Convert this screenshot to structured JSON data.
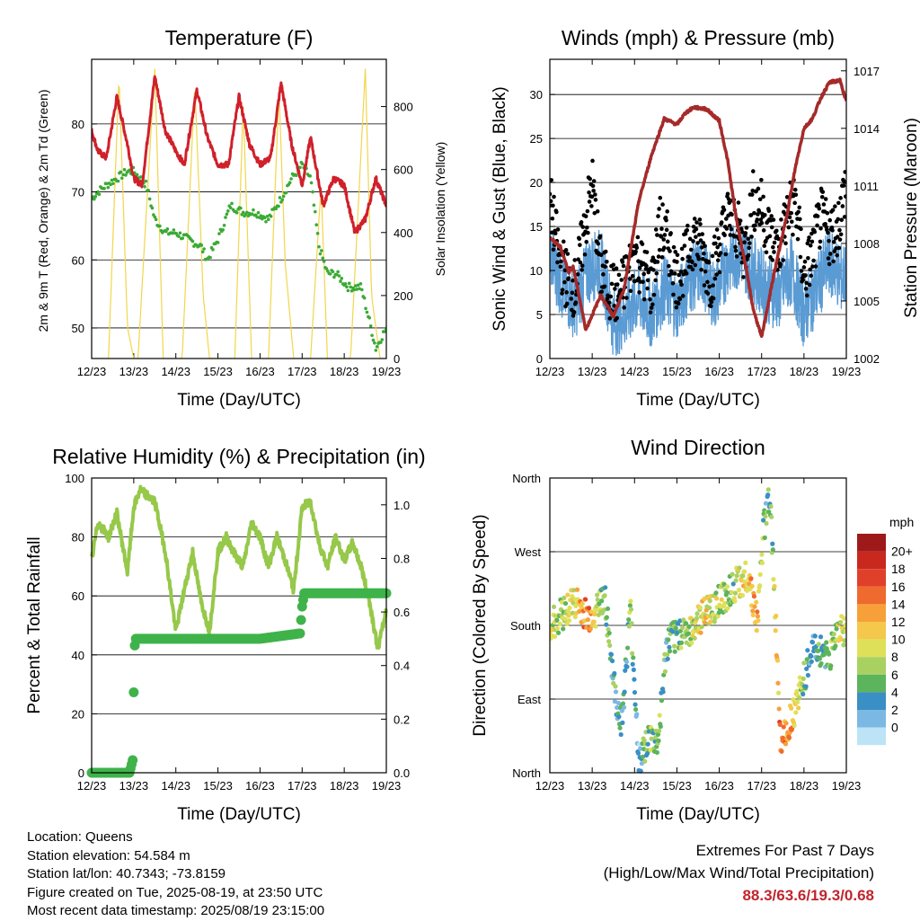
{
  "colors": {
    "temp": "#d0202a",
    "temp_9m": "#f39c1f",
    "dewpoint": "#3aaa35",
    "solar": "#f2d64b",
    "sonic": "#5a9bd4",
    "gust": "#000000",
    "pressure": "#a52a2a",
    "rh": "#96c84a",
    "precip": "#3fb34a",
    "grid": "#000000"
  },
  "chart_data": [
    {
      "type": "line",
      "title": "Temperature (F)",
      "xlabel": "Time (Day/UTC)",
      "ylabel": "2m & 9m T (Red, Orange) & 2m Td (Green)",
      "ylabel_right": "Solar Insolation (Yellow)",
      "categories": [
        "12/23",
        "13/23",
        "14/23",
        "15/23",
        "16/23",
        "17/23",
        "18/23",
        "19/23"
      ],
      "ylim": [
        45.5,
        89.5
      ],
      "yticks": [
        50,
        60,
        70,
        80
      ],
      "y2lim": [
        0,
        950
      ],
      "y2ticks": [
        0,
        200,
        400,
        600,
        800
      ],
      "grid": true,
      "series": [
        {
          "name": "2m T",
          "x": [
            0,
            0.15,
            0.35,
            0.6,
            0.85,
            1.0,
            1.2,
            1.5,
            1.75,
            2.0,
            2.2,
            2.5,
            2.75,
            3.0,
            3.25,
            3.5,
            3.75,
            4.0,
            4.25,
            4.5,
            4.75,
            5.0,
            5.2,
            5.5,
            5.75,
            6.0,
            6.25,
            6.5,
            6.75,
            7.0
          ],
          "values": [
            79,
            76,
            75,
            84,
            77,
            72,
            71,
            87,
            79,
            76,
            74,
            85,
            78,
            74,
            74,
            84,
            77,
            74,
            75,
            86,
            77,
            71,
            78,
            68,
            72,
            71,
            64,
            66,
            72,
            68
          ]
        },
        {
          "name": "2m Td",
          "x": [
            0,
            0.15,
            0.35,
            0.6,
            0.85,
            1.0,
            1.3,
            1.5,
            1.75,
            2.0,
            2.3,
            2.6,
            2.75,
            3.0,
            3.3,
            3.6,
            3.9,
            4.2,
            4.5,
            4.75,
            5.0,
            5.2,
            5.4,
            5.6,
            5.8,
            6.1,
            6.4,
            6.6,
            6.75,
            7.0
          ],
          "values": [
            69,
            70,
            71,
            72,
            73,
            73,
            71,
            66,
            64,
            64,
            63,
            62,
            60,
            63,
            68,
            67,
            67,
            66,
            69,
            72,
            74,
            72,
            62,
            58,
            58,
            56,
            56,
            51,
            47,
            50
          ]
        },
        {
          "name": "Solar Insolation",
          "axis": "right",
          "x": [
            0.0,
            0.4,
            0.65,
            0.85,
            1.0,
            1.1,
            1.4,
            1.5,
            1.7,
            2.0,
            2.15,
            2.45,
            2.65,
            2.8,
            3.0,
            3.2,
            3.4,
            3.6,
            3.8,
            4.0,
            4.2,
            4.45,
            4.6,
            4.8,
            5.0,
            5.2,
            5.45,
            5.6,
            5.8,
            6.0,
            6.15,
            6.5,
            6.65,
            6.85,
            7.0
          ],
          "values": [
            0,
            0,
            900,
            100,
            0,
            0,
            700,
            920,
            0,
            0,
            0,
            870,
            200,
            0,
            0,
            0,
            0,
            800,
            0,
            0,
            0,
            850,
            300,
            0,
            0,
            0,
            550,
            0,
            0,
            0,
            0,
            920,
            200,
            0,
            0
          ]
        }
      ]
    },
    {
      "type": "line",
      "title": "Winds (mph) & Pressure (mb)",
      "xlabel": "Time (Day/UTC)",
      "ylabel": "Sonic Wind & Gust (Blue, Black)",
      "ylabel_right": "Station Pressure (Maroon)",
      "categories": [
        "12/23",
        "13/23",
        "14/23",
        "15/23",
        "16/23",
        "17/23",
        "18/23",
        "19/23"
      ],
      "ylim": [
        0,
        34
      ],
      "yticks": [
        0,
        5,
        10,
        15,
        20,
        25,
        30
      ],
      "y2lim": [
        1002,
        1017.6
      ],
      "y2ticks": [
        1002,
        1005,
        1008,
        1011,
        1014,
        1017
      ],
      "grid": true,
      "series": [
        {
          "name": "Sonic Wind",
          "x": [
            0,
            0.3,
            0.6,
            0.9,
            1.2,
            1.5,
            1.8,
            2.1,
            2.4,
            2.7,
            3.0,
            3.3,
            3.6,
            3.9,
            4.2,
            4.5,
            4.8,
            5.1,
            5.4,
            5.7,
            6.0,
            6.3,
            6.6,
            6.9,
            7.0
          ],
          "values": [
            12,
            8,
            6,
            10,
            11,
            4,
            5,
            7,
            5,
            8,
            6,
            9,
            10,
            7,
            11,
            12,
            10,
            8,
            7,
            10,
            5,
            8,
            11,
            9,
            10
          ]
        },
        {
          "name": "Gust",
          "x": [
            0,
            0.2,
            0.4,
            0.6,
            0.8,
            1.0,
            1.2,
            1.4,
            1.6,
            1.8,
            2.0,
            2.2,
            2.4,
            2.6,
            2.8,
            3.0,
            3.2,
            3.4,
            3.6,
            3.8,
            4.0,
            4.2,
            4.4,
            4.6,
            4.8,
            5.0,
            5.2,
            5.4,
            5.6,
            5.8,
            6.0,
            6.2,
            6.4,
            6.6,
            6.8,
            7.0
          ],
          "values": [
            18,
            12,
            9,
            8,
            14,
            20,
            10,
            8,
            7,
            9,
            12,
            10,
            8,
            15,
            13,
            9,
            11,
            14,
            12,
            9,
            13,
            16,
            15,
            12,
            18,
            17,
            14,
            12,
            16,
            18,
            9,
            12,
            16,
            14,
            15,
            20
          ]
        },
        {
          "name": "Station Pressure",
          "axis": "right",
          "x": [
            0,
            0.25,
            0.45,
            0.55,
            0.85,
            1.2,
            1.5,
            1.75,
            2.1,
            2.4,
            2.7,
            3.0,
            3.2,
            3.4,
            3.7,
            4.0,
            4.2,
            4.4,
            4.6,
            4.8,
            5.0,
            5.3,
            5.6,
            5.8,
            6.0,
            6.2,
            6.4,
            6.6,
            6.85,
            7.0
          ],
          "values": [
            1008.3,
            1007.8,
            1006.5,
            1006.8,
            1003.5,
            1005.3,
            1004.2,
            1005.6,
            1010.2,
            1012.6,
            1014.5,
            1014.2,
            1014.8,
            1015.1,
            1015.0,
            1014.4,
            1012.3,
            1009.3,
            1007.1,
            1004.6,
            1003.1,
            1006.5,
            1009.5,
            1012.0,
            1014.0,
            1014.5,
            1015.6,
            1016.4,
            1016.5,
            1015.4
          ]
        }
      ]
    },
    {
      "type": "line",
      "title": "Relative Humidity (%) & Precipitation (in)",
      "xlabel": "Time (Day/UTC)",
      "ylabel": "Percent & Total Rainfall",
      "categories": [
        "12/23",
        "13/23",
        "14/23",
        "15/23",
        "16/23",
        "17/23",
        "18/23",
        "19/23"
      ],
      "ylim": [
        0,
        100
      ],
      "yticks": [
        0,
        20,
        40,
        60,
        80,
        100
      ],
      "y2lim": [
        0,
        1.1
      ],
      "y2ticks": [
        0.0,
        0.2,
        0.4,
        0.6,
        0.8,
        1.0
      ],
      "grid": true,
      "series": [
        {
          "name": "Relative Humidity",
          "x": [
            0,
            0.15,
            0.4,
            0.6,
            0.85,
            1.0,
            1.15,
            1.5,
            1.75,
            2.0,
            2.2,
            2.4,
            2.6,
            2.8,
            3.0,
            3.2,
            3.4,
            3.6,
            3.8,
            4.0,
            4.2,
            4.4,
            4.6,
            4.8,
            5.0,
            5.2,
            5.4,
            5.6,
            5.8,
            6.0,
            6.2,
            6.4,
            6.6,
            6.8,
            7.0
          ],
          "values": [
            72,
            85,
            80,
            88,
            68,
            90,
            96,
            92,
            75,
            48,
            62,
            75,
            58,
            48,
            75,
            80,
            74,
            70,
            85,
            80,
            70,
            80,
            72,
            62,
            90,
            92,
            78,
            70,
            80,
            72,
            78,
            70,
            58,
            42,
            55
          ]
        },
        {
          "name": "Precipitation",
          "axis": "right",
          "x": [
            0,
            0.9,
            0.98,
            1.0,
            1.02,
            1.05,
            1.5,
            2.0,
            3.0,
            4.0,
            4.95,
            5.0,
            5.05,
            5.5,
            6.0,
            7.0
          ],
          "values": [
            0,
            0,
            0.05,
            0.3,
            0.47,
            0.5,
            0.5,
            0.5,
            0.5,
            0.5,
            0.52,
            0.62,
            0.67,
            0.67,
            0.67,
            0.67
          ]
        }
      ]
    },
    {
      "type": "scatter",
      "title": "Wind Direction",
      "xlabel": "Time (Day/UTC)",
      "ylabel": "Direction (Colored By Speed)",
      "categories": [
        "12/23",
        "13/23",
        "14/23",
        "15/23",
        "16/23",
        "17/23",
        "18/23",
        "19/23"
      ],
      "yticks": [
        "North",
        "East",
        "South",
        "West",
        "North"
      ],
      "ylim": [
        0,
        360
      ],
      "colorbar": {
        "title": "mph",
        "labels": [
          "20+",
          "18",
          "16",
          "14",
          "12",
          "10",
          "8",
          "6",
          "4",
          "2",
          "0"
        ],
        "colors": [
          "#9e1a1a",
          "#c8281e",
          "#e0402a",
          "#ef6a2e",
          "#f7a03a",
          "#f4c84a",
          "#dfe05a",
          "#a9d162",
          "#5cb45c",
          "#3a8fc4",
          "#7cb8e4",
          "#bde3f6"
        ]
      },
      "series": [
        {
          "name": "Direction",
          "x": [
            0.0,
            0.2,
            0.4,
            0.6,
            0.8,
            0.95,
            1.1,
            1.3,
            1.55,
            1.7,
            1.9,
            2.1,
            2.3,
            2.55,
            2.75,
            2.9,
            3.1,
            3.3,
            3.5,
            3.7,
            3.9,
            4.1,
            4.3,
            4.5,
            4.7,
            4.9,
            5.05,
            5.2,
            5.45,
            5.6,
            5.8,
            6.0,
            6.2,
            6.4,
            6.6,
            6.8,
            7.0
          ],
          "values": [
            180,
            190,
            200,
            210,
            195,
            188,
            200,
            215,
            90,
            60,
            200,
            15,
            40,
            35,
            150,
            165,
            170,
            175,
            185,
            195,
            205,
            215,
            225,
            235,
            240,
            180,
            300,
            340,
            40,
            55,
            80,
            115,
            150,
            150,
            140,
            175,
            170
          ],
          "speeds": [
            10,
            8,
            9,
            11,
            15,
            16,
            8,
            6,
            5,
            4,
            7,
            3,
            6,
            8,
            5,
            6,
            7,
            9,
            10,
            11,
            9,
            8,
            7,
            10,
            12,
            14,
            6,
            5,
            16,
            14,
            12,
            6,
            4,
            5,
            6,
            9,
            10
          ]
        }
      ]
    }
  ],
  "info": {
    "location": "Location: Queens",
    "elevation": "Station elevation: 54.584 m",
    "latlon": "Station lat/lon: 40.7343; -73.8159",
    "created": "Figure created on Tue, 2025-08-19, at 23:50 UTC",
    "recent": "Most recent data timestamp: 2025/08/19 23:15:00"
  },
  "extremes": {
    "title": "Extremes For Past 7 Days",
    "subtitle": "(High/Low/Max Wind/Total Precipitation)",
    "values": "88.3/63.6/19.3/0.68"
  }
}
